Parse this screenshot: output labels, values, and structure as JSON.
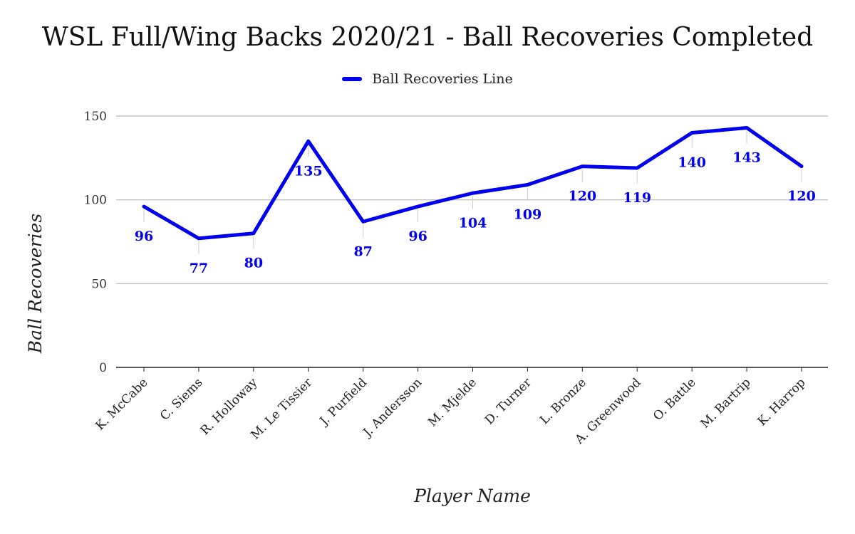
{
  "chart_data": {
    "type": "line",
    "title": "WSL Full/Wing Backs 2020/21 - Ball Recoveries Completed",
    "xlabel": "Player Name",
    "ylabel": "Ball Recoveries",
    "categories": [
      "K. McCabe",
      "C. Siems",
      "R. Holloway",
      "M. Le Tissier",
      "J. Purfield",
      "J. Andersson",
      "M. Mjelde",
      "D. Turner",
      "L. Bronze",
      "A. Greenwood",
      "O. Battle",
      "M. Bartrip",
      "K. Harrop"
    ],
    "series": [
      {
        "name": "Ball Recoveries Line",
        "color": "#0000ee",
        "values": [
          96,
          77,
          80,
          135,
          87,
          96,
          104,
          109,
          120,
          119,
          140,
          143,
          120
        ]
      }
    ],
    "ylim": [
      0,
      150
    ],
    "yticks": [
      0,
      50,
      100,
      150
    ],
    "grid": true,
    "legend_position": "top-center"
  }
}
